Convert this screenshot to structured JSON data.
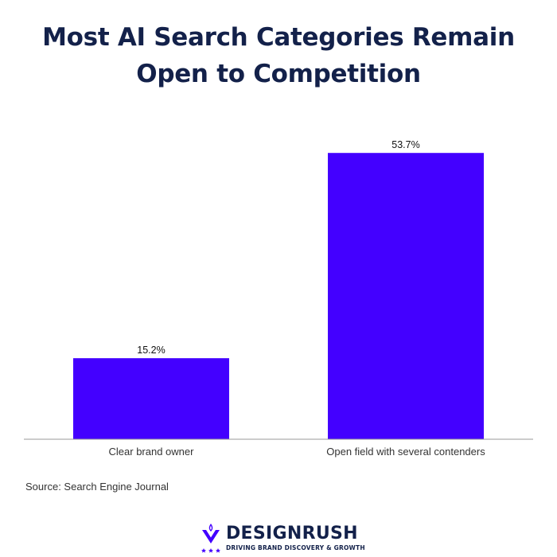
{
  "header": {
    "title_line1": "Most AI Search Categories Remain",
    "title_line2": "Open to Competition"
  },
  "chart_data": {
    "type": "bar",
    "title": "Most AI Search Categories Remain Open to Competition",
    "categories": [
      "Clear brand owner",
      "Open field with several contenders"
    ],
    "values": [
      15.2,
      53.7
    ],
    "value_labels": [
      "15.2%",
      "53.7%"
    ],
    "xlabel": "",
    "ylabel": "",
    "ylim": [
      0,
      60
    ],
    "grid": false,
    "legend": "none",
    "bar_color": "#4300ff"
  },
  "footer": {
    "source": "Source: Search Engine Journal"
  },
  "brand": {
    "name": "DESIGNRUSH",
    "tagline": "DRIVING BRAND DISCOVERY & GROWTH",
    "icon": "designrush-logo-icon",
    "color": "#13214a",
    "accent": "#4300ff"
  }
}
